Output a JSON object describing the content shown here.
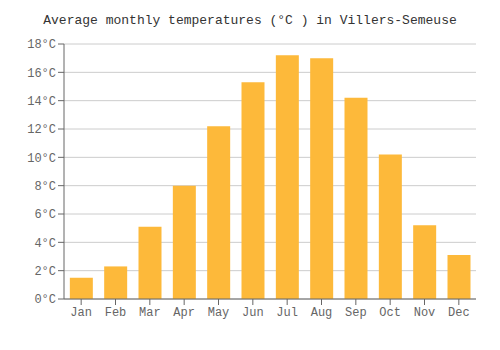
{
  "chart_data": {
    "type": "bar",
    "title": "Average monthly temperatures (°C ) in Villers-Semeuse",
    "categories": [
      "Jan",
      "Feb",
      "Mar",
      "Apr",
      "May",
      "Jun",
      "Jul",
      "Aug",
      "Sep",
      "Oct",
      "Nov",
      "Dec"
    ],
    "values": [
      1.5,
      2.3,
      5.1,
      8.0,
      12.2,
      15.3,
      17.2,
      17.0,
      14.2,
      10.2,
      5.2,
      3.1
    ],
    "color": "#FDB93A",
    "ylim": [
      0,
      18
    ],
    "yticks": [
      {
        "value": 0,
        "label": "0°C"
      },
      {
        "value": 2,
        "label": "2°C"
      },
      {
        "value": 4,
        "label": "4°C"
      },
      {
        "value": 6,
        "label": "6°C"
      },
      {
        "value": 8,
        "label": "8°C"
      },
      {
        "value": 10,
        "label": "10°C"
      },
      {
        "value": 12,
        "label": "12°C"
      },
      {
        "value": 14,
        "label": "14°C"
      },
      {
        "value": 16,
        "label": "16°C"
      },
      {
        "value": 18,
        "label": "18°C"
      }
    ],
    "grid": true
  }
}
